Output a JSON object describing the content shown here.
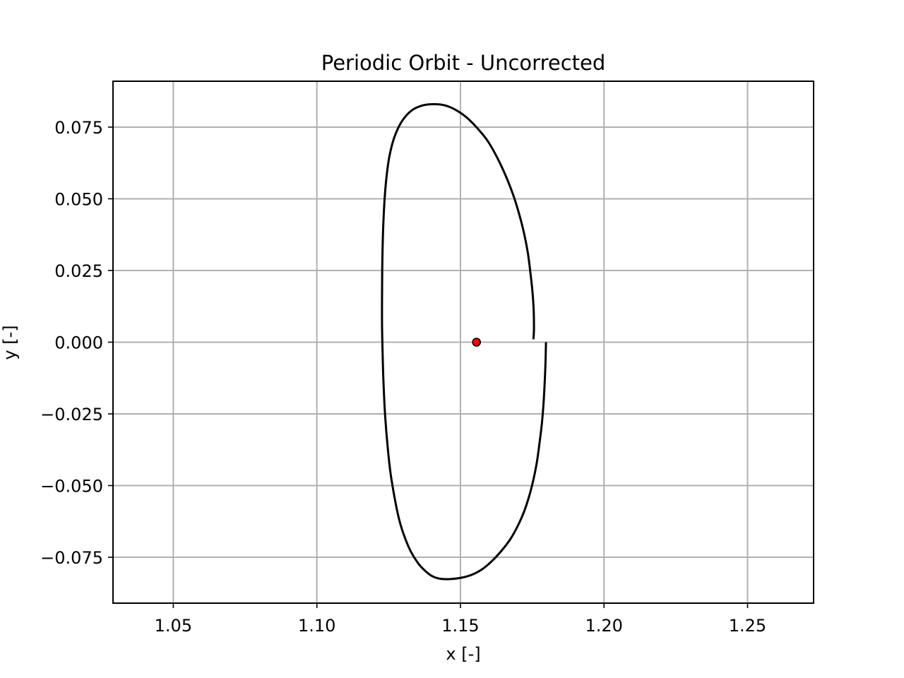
{
  "chart_data": {
    "type": "line",
    "title": "Periodic Orbit - Uncorrected",
    "xlabel": "x [-]",
    "ylabel": "y [-]",
    "xlim": [
      1.029,
      1.273
    ],
    "ylim": [
      -0.091,
      0.091
    ],
    "grid": true,
    "x_ticks": [
      1.05,
      1.1,
      1.15,
      1.2,
      1.25
    ],
    "x_tick_labels": [
      "1.05",
      "1.10",
      "1.15",
      "1.20",
      "1.25"
    ],
    "y_ticks": [
      -0.075,
      -0.05,
      -0.025,
      0.0,
      0.025,
      0.05,
      0.075
    ],
    "y_tick_labels": [
      "−0.075",
      "−0.050",
      "−0.025",
      "0.000",
      "0.025",
      "0.050",
      "0.075"
    ],
    "series": [
      {
        "color": "#000000",
        "x": [
          1.1798,
          1.1796,
          1.1793,
          1.1789,
          1.1783,
          1.1775,
          1.1766,
          1.1754,
          1.174,
          1.1722,
          1.17,
          1.1675,
          1.1645,
          1.161,
          1.1574,
          1.1537,
          1.15,
          1.1466,
          1.144,
          1.142,
          1.14,
          1.138,
          1.1352,
          1.132,
          1.1287,
          1.126,
          1.1248,
          1.1238,
          1.1232,
          1.1229,
          1.1227,
          1.1227,
          1.1228,
          1.1231,
          1.1236,
          1.1243,
          1.1253,
          1.127,
          1.1296,
          1.133,
          1.137,
          1.141,
          1.1445,
          1.148,
          1.152,
          1.156,
          1.1596,
          1.163,
          1.166,
          1.1685,
          1.1705,
          1.1722,
          1.1735,
          1.1744,
          1.1751,
          1.1755,
          1.1756,
          1.1756,
          1.1755,
          1.1754
        ],
        "y": [
          0.0,
          -0.008,
          -0.015,
          -0.022,
          -0.029,
          -0.0355,
          -0.042,
          -0.048,
          -0.0535,
          -0.059,
          -0.064,
          -0.0685,
          -0.0725,
          -0.0763,
          -0.0793,
          -0.0812,
          -0.0822,
          -0.0826,
          -0.0826,
          -0.0823,
          -0.0815,
          -0.08,
          -0.077,
          -0.0715,
          -0.062,
          -0.048,
          -0.038,
          -0.026,
          -0.014,
          -0.004,
          0.006,
          0.016,
          0.028,
          0.04,
          0.05,
          0.058,
          0.065,
          0.0715,
          0.077,
          0.0808,
          0.0826,
          0.083,
          0.0826,
          0.0812,
          0.0785,
          0.0745,
          0.07,
          0.064,
          0.0575,
          0.051,
          0.0445,
          0.0378,
          0.031,
          0.024,
          0.0175,
          0.0115,
          0.007,
          0.004,
          0.002,
          0.001
        ]
      },
      {
        "type": "scatter",
        "color": "#ff0000",
        "x": [
          1.1556
        ],
        "y": [
          0.0
        ]
      }
    ]
  }
}
